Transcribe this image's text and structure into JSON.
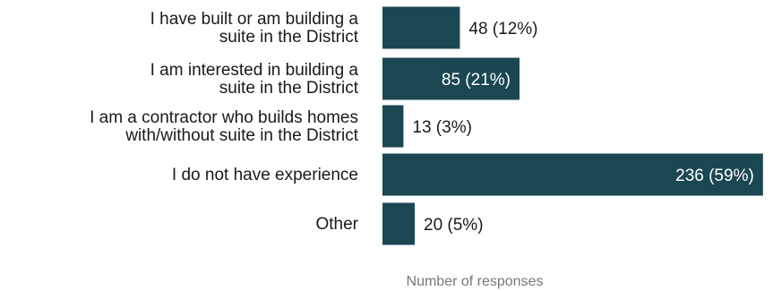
{
  "chart_data": {
    "type": "bar",
    "orientation": "horizontal",
    "categories": [
      [
        "I have built or am building a",
        "suite in the District"
      ],
      [
        "I am interested in building a",
        "suite in the District"
      ],
      [
        "I am a contractor who builds homes",
        "with/without suite in the District"
      ],
      [
        "I do not have experience"
      ],
      [
        "Other"
      ]
    ],
    "values": [
      48,
      85,
      13,
      236,
      20
    ],
    "value_labels": [
      "48  (12%)",
      "85  (21%)",
      "13  (3%)",
      "236  (59%)",
      "20  (5%)"
    ],
    "xlabel": "Number of responses",
    "ylabel": "",
    "title": "",
    "grid": false,
    "bar_color": "#1b4753",
    "label_inside_color": "#ffffff",
    "label_outside_color": "#1a1a1a"
  }
}
